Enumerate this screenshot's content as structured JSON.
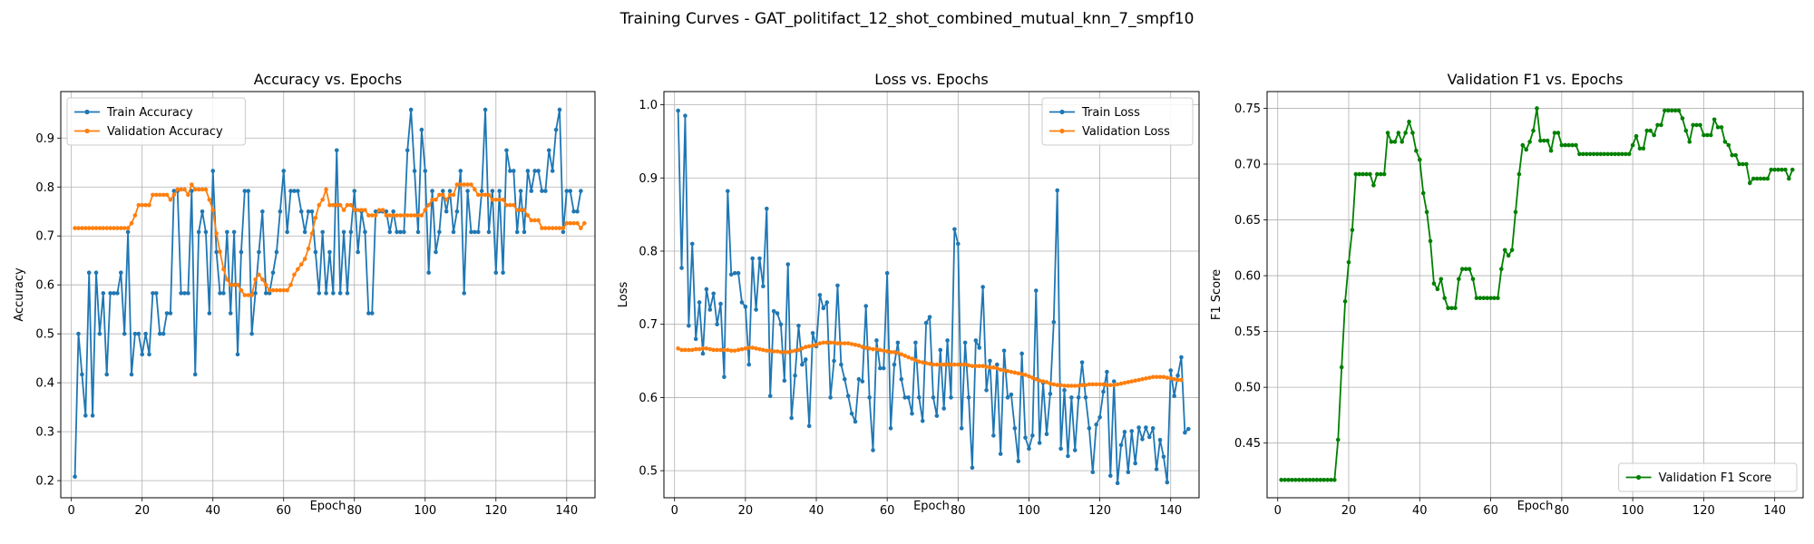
{
  "figure_title": "Training Curves - GAT_politifact_12_shot_combined_mutual_knn_7_smpf10",
  "colors": {
    "train": "#1f77b4",
    "validation": "#ff7f0e",
    "f1": "#008000",
    "grid": "#b0b0b0"
  },
  "chart_data": [
    {
      "type": "line",
      "title": "Accuracy vs. Epochs",
      "xlabel": "Epoch",
      "ylabel": "Accuracy",
      "xlim": [
        -3,
        148
      ],
      "ylim": [
        0.165,
        0.995
      ],
      "xticks": [
        0,
        20,
        40,
        60,
        80,
        100,
        120,
        140
      ],
      "yticks": [
        0.2,
        0.3,
        0.4,
        0.5,
        0.6,
        0.7,
        0.8,
        0.9
      ],
      "grid": true,
      "legend_position": "upper-left",
      "x": {
        "start": 1,
        "end": 143
      },
      "series": [
        {
          "name": "Train Accuracy",
          "color": "#1f77b4",
          "values": [
            0.208,
            0.5,
            0.417,
            0.333,
            0.625,
            0.333,
            0.625,
            0.5,
            0.583,
            0.417,
            0.583,
            0.583,
            0.583,
            0.625,
            0.5,
            0.708,
            0.417,
            0.5,
            0.5,
            0.458,
            0.5,
            0.458,
            0.583,
            0.583,
            0.5,
            0.5,
            0.542,
            0.542,
            0.792,
            0.792,
            0.583,
            0.583,
            0.583,
            0.792,
            0.417,
            0.708,
            0.75,
            0.708,
            0.542,
            0.833,
            0.667,
            0.583,
            0.583,
            0.708,
            0.542,
            0.708,
            0.458,
            0.667,
            0.792,
            0.792,
            0.5,
            0.583,
            0.667,
            0.75,
            0.583,
            0.583,
            0.625,
            0.667,
            0.75,
            0.833,
            0.708,
            0.792,
            0.792,
            0.792,
            0.75,
            0.708,
            0.75,
            0.75,
            0.667,
            0.583,
            0.708,
            0.583,
            0.667,
            0.583,
            0.875,
            0.583,
            0.708,
            0.583,
            0.708,
            0.792,
            0.667,
            0.75,
            0.708,
            0.542,
            0.542,
            0.75,
            0.75,
            0.75,
            0.75,
            0.708,
            0.75,
            0.708,
            0.708,
            0.708,
            0.875,
            0.958,
            0.833,
            0.708,
            0.917,
            0.833,
            0.625,
            0.792,
            0.667,
            0.708,
            0.792,
            0.75,
            0.792,
            0.708,
            0.75,
            0.833,
            0.583,
            0.792,
            0.708,
            0.708,
            0.708,
            0.792,
            0.958,
            0.708,
            0.792,
            0.625,
            0.792,
            0.625,
            0.875,
            0.833,
            0.833,
            0.708,
            0.792,
            0.708,
            0.833,
            0.792,
            0.833,
            0.833,
            0.792,
            0.792,
            0.875,
            0.833,
            0.917,
            0.958,
            0.708,
            0.792,
            0.792,
            0.75,
            0.75,
            0.792
          ]
        },
        {
          "name": "Validation Accuracy",
          "color": "#ff7f0e",
          "values": [
            0.716,
            0.716,
            0.716,
            0.716,
            0.716,
            0.716,
            0.716,
            0.716,
            0.716,
            0.716,
            0.716,
            0.716,
            0.716,
            0.716,
            0.716,
            0.716,
            0.726,
            0.742,
            0.763,
            0.763,
            0.763,
            0.763,
            0.784,
            0.784,
            0.784,
            0.784,
            0.784,
            0.774,
            0.784,
            0.795,
            0.795,
            0.795,
            0.784,
            0.805,
            0.795,
            0.795,
            0.795,
            0.795,
            0.774,
            0.753,
            0.705,
            0.668,
            0.632,
            0.611,
            0.6,
            0.6,
            0.6,
            0.589,
            0.579,
            0.579,
            0.579,
            0.611,
            0.621,
            0.611,
            0.6,
            0.589,
            0.589,
            0.589,
            0.589,
            0.589,
            0.589,
            0.6,
            0.621,
            0.632,
            0.642,
            0.653,
            0.674,
            0.705,
            0.737,
            0.763,
            0.774,
            0.795,
            0.763,
            0.763,
            0.763,
            0.763,
            0.753,
            0.763,
            0.763,
            0.753,
            0.753,
            0.753,
            0.753,
            0.742,
            0.742,
            0.742,
            0.753,
            0.753,
            0.742,
            0.742,
            0.742,
            0.742,
            0.742,
            0.742,
            0.742,
            0.742,
            0.742,
            0.742,
            0.742,
            0.753,
            0.763,
            0.774,
            0.774,
            0.784,
            0.784,
            0.774,
            0.784,
            0.784,
            0.805,
            0.805,
            0.805,
            0.805,
            0.805,
            0.795,
            0.784,
            0.784,
            0.784,
            0.784,
            0.774,
            0.774,
            0.774,
            0.774,
            0.763,
            0.763,
            0.763,
            0.753,
            0.753,
            0.753,
            0.742,
            0.732,
            0.732,
            0.732,
            0.716,
            0.716,
            0.716,
            0.716,
            0.716,
            0.716,
            0.716,
            0.726,
            0.726,
            0.726,
            0.726,
            0.716,
            0.726
          ]
        }
      ]
    },
    {
      "type": "line",
      "title": "Loss vs. Epochs",
      "xlabel": "Epoch",
      "ylabel": "Loss",
      "xlim": [
        -3,
        148
      ],
      "ylim": [
        0.463,
        1.018
      ],
      "xticks": [
        0,
        20,
        40,
        60,
        80,
        100,
        120,
        140
      ],
      "yticks": [
        0.5,
        0.6,
        0.7,
        0.8,
        0.9,
        1.0
      ],
      "grid": true,
      "legend_position": "upper-right",
      "x": {
        "start": 1,
        "end": 143
      },
      "series": [
        {
          "name": "Train Loss",
          "color": "#1f77b4",
          "values": [
            0.992,
            0.777,
            0.985,
            0.698,
            0.81,
            0.68,
            0.73,
            0.66,
            0.748,
            0.72,
            0.742,
            0.7,
            0.728,
            0.628,
            0.882,
            0.768,
            0.77,
            0.77,
            0.73,
            0.724,
            0.645,
            0.79,
            0.72,
            0.79,
            0.752,
            0.858,
            0.602,
            0.718,
            0.715,
            0.7,
            0.623,
            0.782,
            0.572,
            0.63,
            0.698,
            0.645,
            0.652,
            0.561,
            0.688,
            0.67,
            0.74,
            0.722,
            0.73,
            0.6,
            0.65,
            0.753,
            0.645,
            0.625,
            0.602,
            0.578,
            0.567,
            0.625,
            0.622,
            0.725,
            0.6,
            0.528,
            0.678,
            0.64,
            0.64,
            0.77,
            0.558,
            0.645,
            0.675,
            0.625,
            0.6,
            0.6,
            0.578,
            0.675,
            0.6,
            0.568,
            0.702,
            0.71,
            0.6,
            0.575,
            0.665,
            0.585,
            0.678,
            0.6,
            0.83,
            0.81,
            0.558,
            0.675,
            0.6,
            0.504,
            0.678,
            0.668,
            0.751,
            0.61,
            0.65,
            0.548,
            0.645,
            0.523,
            0.664,
            0.6,
            0.604,
            0.558,
            0.513,
            0.66,
            0.545,
            0.53,
            0.548,
            0.746,
            0.538,
            0.62,
            0.55,
            0.605,
            0.703,
            0.883,
            0.53,
            0.61,
            0.52,
            0.6,
            0.528,
            0.6,
            0.648,
            0.6,
            0.558,
            0.498,
            0.563,
            0.573,
            0.608,
            0.635,
            0.493,
            0.622,
            0.483,
            0.535,
            0.553,
            0.498,
            0.554,
            0.51,
            0.559,
            0.543,
            0.559,
            0.546,
            0.558,
            0.502,
            0.542,
            0.519,
            0.484,
            0.637,
            0.602,
            0.63,
            0.655,
            0.552,
            0.557
          ]
        },
        {
          "name": "Validation Loss",
          "color": "#ff7f0e",
          "values": [
            0.667,
            0.665,
            0.665,
            0.665,
            0.665,
            0.666,
            0.666,
            0.667,
            0.667,
            0.666,
            0.665,
            0.665,
            0.665,
            0.665,
            0.665,
            0.664,
            0.664,
            0.665,
            0.666,
            0.667,
            0.668,
            0.668,
            0.667,
            0.666,
            0.665,
            0.664,
            0.664,
            0.663,
            0.663,
            0.662,
            0.662,
            0.662,
            0.663,
            0.664,
            0.665,
            0.667,
            0.669,
            0.67,
            0.671,
            0.672,
            0.674,
            0.675,
            0.675,
            0.675,
            0.675,
            0.674,
            0.674,
            0.674,
            0.674,
            0.673,
            0.672,
            0.671,
            0.669,
            0.668,
            0.667,
            0.666,
            0.666,
            0.665,
            0.664,
            0.663,
            0.662,
            0.662,
            0.661,
            0.659,
            0.657,
            0.655,
            0.653,
            0.651,
            0.649,
            0.648,
            0.647,
            0.646,
            0.645,
            0.645,
            0.645,
            0.645,
            0.645,
            0.645,
            0.645,
            0.645,
            0.645,
            0.645,
            0.644,
            0.643,
            0.643,
            0.643,
            0.643,
            0.642,
            0.641,
            0.641,
            0.64,
            0.638,
            0.637,
            0.636,
            0.635,
            0.634,
            0.633,
            0.632,
            0.631,
            0.629,
            0.627,
            0.625,
            0.623,
            0.622,
            0.621,
            0.619,
            0.618,
            0.617,
            0.617,
            0.616,
            0.616,
            0.616,
            0.616,
            0.616,
            0.617,
            0.617,
            0.618,
            0.618,
            0.618,
            0.618,
            0.618,
            0.617,
            0.617,
            0.617,
            0.618,
            0.619,
            0.62,
            0.621,
            0.622,
            0.623,
            0.624,
            0.625,
            0.626,
            0.627,
            0.628,
            0.628,
            0.628,
            0.628,
            0.627,
            0.626,
            0.625,
            0.624,
            0.624
          ]
        }
      ]
    },
    {
      "type": "line",
      "title": "Validation F1 vs. Epochs",
      "xlabel": "Epoch",
      "ylabel": "F1 Score",
      "xlim": [
        -3,
        148
      ],
      "ylim": [
        0.401,
        0.765
      ],
      "xticks": [
        0,
        20,
        40,
        60,
        80,
        100,
        120,
        140
      ],
      "yticks": [
        0.45,
        0.5,
        0.55,
        0.6,
        0.65,
        0.7,
        0.75
      ],
      "grid": true,
      "legend_position": "lower-right",
      "x": {
        "start": 1,
        "end": 143
      },
      "series": [
        {
          "name": "Validation F1 Score",
          "color": "#008000",
          "values": [
            0.417,
            0.417,
            0.417,
            0.417,
            0.417,
            0.417,
            0.417,
            0.417,
            0.417,
            0.417,
            0.417,
            0.417,
            0.417,
            0.417,
            0.417,
            0.417,
            0.453,
            0.518,
            0.577,
            0.612,
            0.641,
            0.691,
            0.691,
            0.691,
            0.691,
            0.691,
            0.681,
            0.691,
            0.691,
            0.691,
            0.728,
            0.72,
            0.72,
            0.728,
            0.72,
            0.728,
            0.738,
            0.728,
            0.712,
            0.704,
            0.674,
            0.657,
            0.631,
            0.593,
            0.588,
            0.597,
            0.58,
            0.571,
            0.571,
            0.571,
            0.597,
            0.606,
            0.606,
            0.606,
            0.597,
            0.58,
            0.58,
            0.58,
            0.58,
            0.58,
            0.58,
            0.58,
            0.606,
            0.623,
            0.618,
            0.623,
            0.657,
            0.691,
            0.717,
            0.713,
            0.72,
            0.73,
            0.75,
            0.721,
            0.721,
            0.721,
            0.712,
            0.728,
            0.728,
            0.717,
            0.717,
            0.717,
            0.717,
            0.717,
            0.709,
            0.709,
            0.709,
            0.709,
            0.709,
            0.709,
            0.709,
            0.709,
            0.709,
            0.709,
            0.709,
            0.709,
            0.709,
            0.709,
            0.709,
            0.717,
            0.725,
            0.714,
            0.714,
            0.73,
            0.73,
            0.726,
            0.735,
            0.735,
            0.748,
            0.748,
            0.748,
            0.748,
            0.748,
            0.741,
            0.73,
            0.72,
            0.735,
            0.735,
            0.735,
            0.726,
            0.726,
            0.726,
            0.74,
            0.733,
            0.733,
            0.72,
            0.717,
            0.708,
            0.708,
            0.7,
            0.7,
            0.7,
            0.683,
            0.687,
            0.687,
            0.687,
            0.687,
            0.687,
            0.695,
            0.695,
            0.695,
            0.695,
            0.695,
            0.687,
            0.695
          ]
        }
      ]
    }
  ]
}
